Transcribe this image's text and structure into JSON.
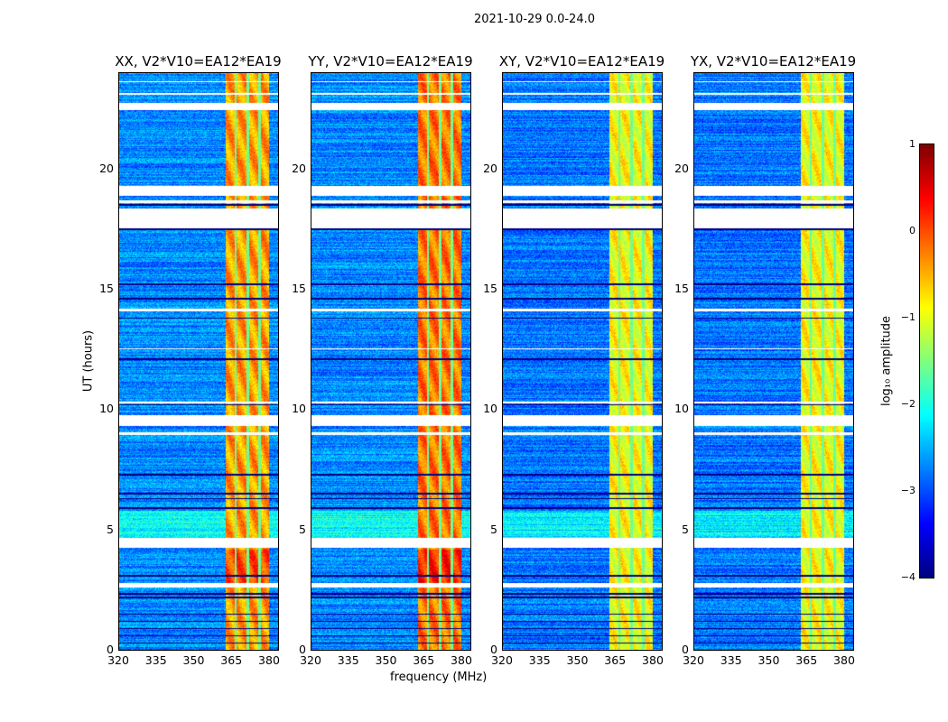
{
  "chart_data": {
    "type": "heatmap",
    "suptitle": "2021-10-29 0.0-24.0",
    "xlabel": "frequency (MHz)",
    "ylabel": "UT (hours)",
    "xlim": [
      320,
      383.6
    ],
    "ylim": [
      0,
      24
    ],
    "xticks": [
      "320",
      "335",
      "350",
      "365",
      "380"
    ],
    "xtick_values": [
      320,
      335,
      350,
      365,
      380
    ],
    "yticks": [
      "0",
      "5",
      "10",
      "15",
      "20"
    ],
    "ytick_values": [
      0,
      5,
      10,
      15,
      20
    ],
    "panels": [
      {
        "title": "XX, V2*V10=EA12*EA19",
        "band_level": -0.4,
        "background_level": -2.7
      },
      {
        "title": "YY, V2*V10=EA12*EA19",
        "band_level": -0.2,
        "background_level": -2.7
      },
      {
        "title": "XY, V2*V10=EA12*EA19",
        "band_level": -0.9,
        "background_level": -2.8
      },
      {
        "title": "YX, V2*V10=EA12*EA19",
        "band_level": -0.9,
        "background_level": -2.8
      }
    ],
    "rfi_band_mhz": [
      362.5,
      380
    ],
    "band_gaps_mhz": [
      366.5,
      371.5,
      376
    ],
    "flagged_hours": [
      [
        2.6,
        2.8
      ],
      [
        4.25,
        4.65
      ],
      [
        8.95,
        9.05
      ],
      [
        9.3,
        9.75
      ],
      [
        10.25,
        10.35
      ],
      [
        12.5,
        12.55
      ],
      [
        14.1,
        14.2
      ],
      [
        17.55,
        18.35
      ],
      [
        18.6,
        18.7
      ],
      [
        18.9,
        19.3
      ],
      [
        22.45,
        22.75
      ],
      [
        23.1,
        23.15
      ],
      [
        23.6,
        23.65
      ]
    ],
    "dark_hours": [
      0.3,
      0.6,
      0.9,
      1.2,
      1.5,
      2.2,
      2.35,
      3.1,
      5.9,
      6.3,
      6.5,
      7.3,
      10.2,
      12.1,
      13.8,
      14.6,
      15.2,
      17.5,
      18.5
    ],
    "colorbar": {
      "label": "log₁₀ amplitude",
      "colormap": "jet",
      "range": [
        -4,
        1
      ],
      "ticks": [
        "1",
        "0",
        "−1",
        "−2",
        "−3",
        "−4"
      ],
      "tick_values": [
        1,
        0,
        -1,
        -2,
        -3,
        -4
      ]
    }
  }
}
